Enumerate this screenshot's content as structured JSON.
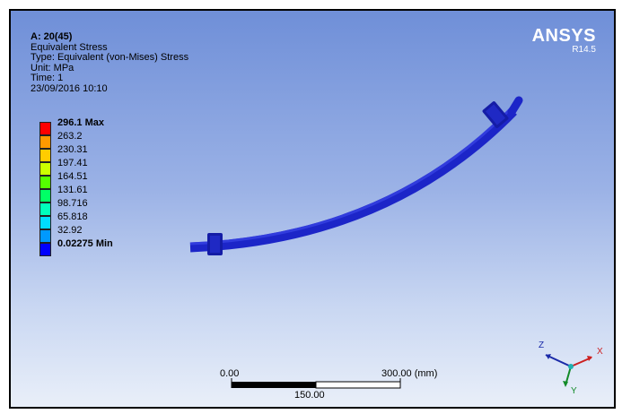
{
  "header": {
    "title": "A: 20(45)",
    "result": "Equivalent Stress",
    "type": "Type: Equivalent (von-Mises) Stress",
    "unit": "Unit: MPa",
    "time": "Time: 1",
    "date": "23/09/2016 10:10"
  },
  "brand": {
    "logo": "ANSYS",
    "version": "R14.5"
  },
  "legend": {
    "labels": [
      "296.1 Max",
      "263.2",
      "230.31",
      "197.41",
      "164.51",
      "131.61",
      "98.716",
      "65.818",
      "32.92",
      "0.02275 Min"
    ],
    "colors": [
      "#ff0000",
      "#ff9900",
      "#ffcc00",
      "#ccff00",
      "#55ff00",
      "#00ff66",
      "#00ffbb",
      "#00ddff",
      "#0099ff",
      "#0000ff"
    ]
  },
  "scale_bar": {
    "left": "0.00",
    "right": "300.00 (mm)",
    "mid": "150.00"
  },
  "triad": {
    "x": "X",
    "y": "Y",
    "z": "Z"
  },
  "model": {
    "color": "#1c25c8"
  }
}
